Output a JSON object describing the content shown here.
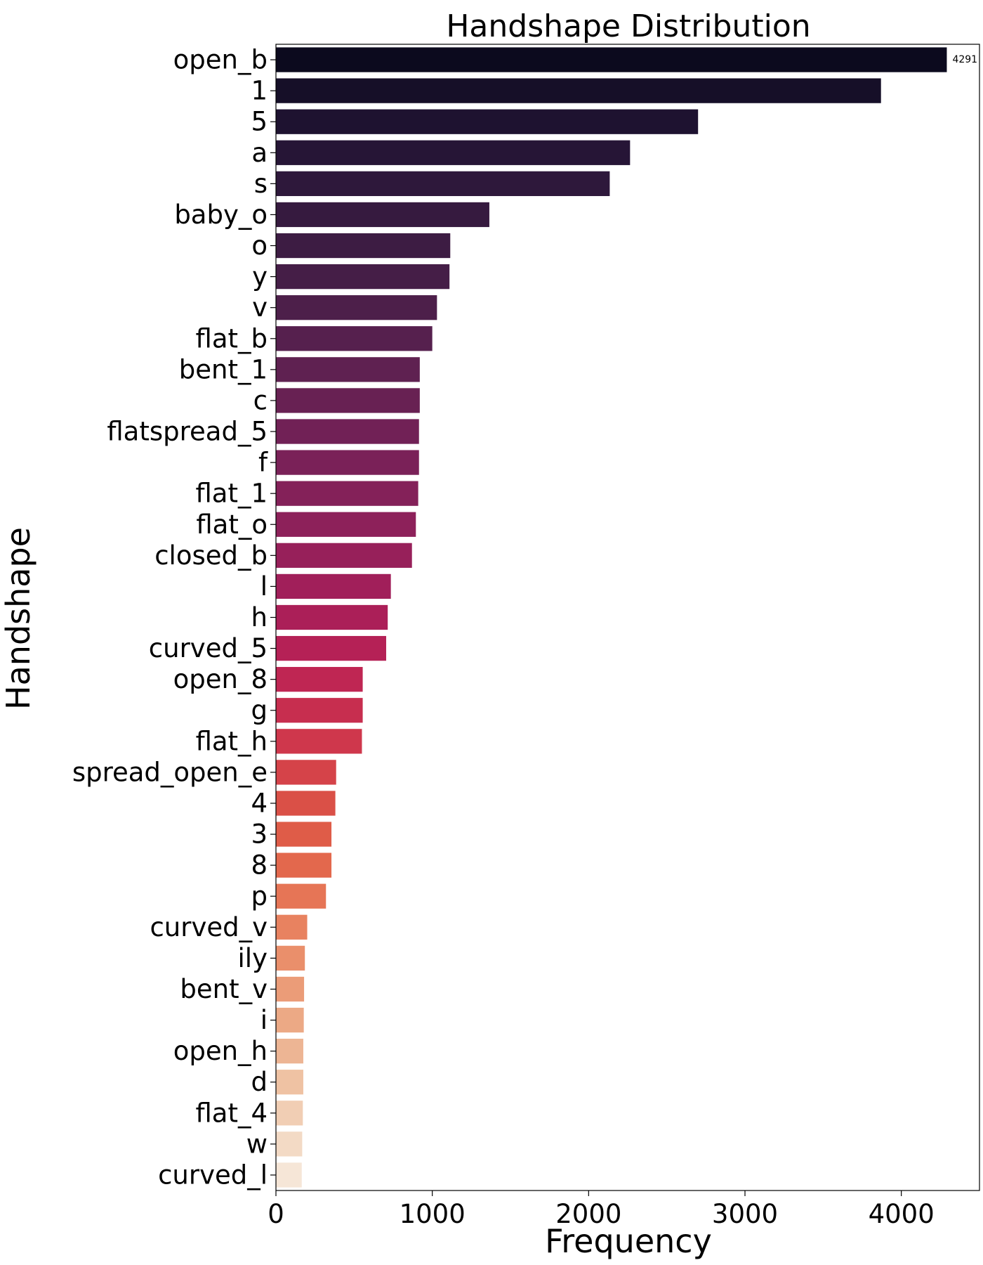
{
  "chart_data": {
    "type": "bar",
    "orientation": "horizontal",
    "title": "Handshape Distribution",
    "xlabel": "Frequency",
    "ylabel": "Handshape",
    "xlim": [
      0,
      4500
    ],
    "xticks": [
      0,
      1000,
      2000,
      3000,
      4000
    ],
    "grid": false,
    "palette": "rocket",
    "categories": [
      "open_b",
      "1",
      "5",
      "a",
      "s",
      "baby_o",
      "o",
      "y",
      "v",
      "flat_b",
      "bent_1",
      "c",
      "flatspread_5",
      "f",
      "flat_1",
      "flat_o",
      "closed_b",
      "l",
      "h",
      "curved_5",
      "open_8",
      "g",
      "flat_h",
      "spread_open_e",
      "4",
      "3",
      "8",
      "p",
      "curved_v",
      "ily",
      "bent_v",
      "i",
      "open_h",
      "d",
      "flat_4",
      "w",
      "curved_l"
    ],
    "values": [
      4291,
      3870,
      2700,
      2265,
      2135,
      1365,
      1115,
      1110,
      1030,
      1000,
      920,
      920,
      915,
      915,
      910,
      895,
      870,
      735,
      715,
      705,
      555,
      555,
      550,
      385,
      380,
      355,
      355,
      320,
      200,
      185,
      180,
      178,
      175,
      175,
      172,
      168,
      165
    ],
    "colors": [
      "#0c0a1e",
      "#160f28",
      "#1e1230",
      "#261536",
      "#2e183b",
      "#361a3f",
      "#3d1c43",
      "#451e47",
      "#4d1f4a",
      "#56204e",
      "#5f2151",
      "#682153",
      "#712156",
      "#7a2158",
      "#842159",
      "#8d215a",
      "#97205a",
      "#a11f5a",
      "#ab1f58",
      "#b52156",
      "#bf2653",
      "#c72e4f",
      "#cf374c",
      "#d54349",
      "#da5047",
      "#df5c48",
      "#e3684d",
      "#e67556",
      "#e88260",
      "#ea8f6b",
      "#eb9c78",
      "#eca985",
      "#edb594",
      "#efc2a3",
      "#f1ceb4",
      "#f3dac5",
      "#f6e6d7"
    ],
    "data_labels": [
      {
        "index": 0,
        "text": "4291"
      }
    ]
  }
}
